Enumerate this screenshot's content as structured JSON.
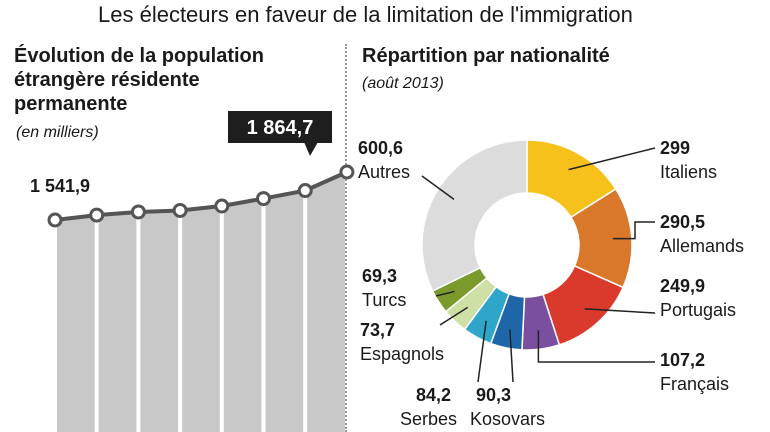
{
  "headline": "Les électeurs en faveur de la limitation de l'immigration",
  "left_panel": {
    "title_lines": [
      "Évolution de la population",
      "étrangère résidente",
      "permanente"
    ],
    "subtitle": "(en milliers)",
    "start_label": "1 541,9",
    "end_label": "1 864,7"
  },
  "right_panel": {
    "title": "Répartition par nationalité",
    "subtitle": "(août 2013)"
  },
  "colors": {
    "bar": "#c8c8c8",
    "line": "#555555",
    "callout": "#1e1e1e",
    "leader": "#222222"
  },
  "chart_data": [
    {
      "type": "line",
      "title": "Évolution de la population étrangère résidente permanente",
      "ylabel": "en milliers",
      "points": [
        1541.9,
        1575,
        1596,
        1606,
        1636,
        1686,
        1740,
        1864.7
      ],
      "ylim": [
        1300,
        1900
      ],
      "labels": {
        "first": "1 541,9",
        "last": "1 864,7"
      }
    },
    {
      "type": "pie",
      "title": "Répartition par nationalité",
      "subtitle": "août 2013",
      "slices": [
        {
          "name": "Italiens",
          "value_label": "299",
          "value": 299,
          "color": "#f7c11b"
        },
        {
          "name": "Allemands",
          "value_label": "290,5",
          "value": 290.5,
          "color": "#d9782a"
        },
        {
          "name": "Portugais",
          "value_label": "249,9",
          "value": 249.9,
          "color": "#d93a2b"
        },
        {
          "name": "Français",
          "value_label": "107,2",
          "value": 107.2,
          "color": "#7b4fa0"
        },
        {
          "name": "Kosovars",
          "value_label": "90,3",
          "value": 90.3,
          "color": "#1f66a8"
        },
        {
          "name": "Serbes",
          "value_label": "84,2",
          "value": 84.2,
          "color": "#2ea6c9"
        },
        {
          "name": "Espagnols",
          "value_label": "73,7",
          "value": 73.7,
          "color": "#cfe0a6"
        },
        {
          "name": "Turcs",
          "value_label": "69,3",
          "value": 69.3,
          "color": "#7a9a2b"
        },
        {
          "name": "Autres",
          "value_label": "600,6",
          "value": 600.6,
          "color": "#dcdcdc"
        }
      ]
    }
  ]
}
